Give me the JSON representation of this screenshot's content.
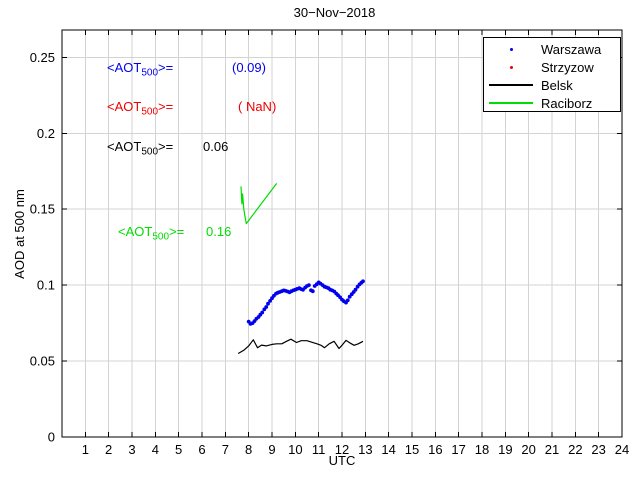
{
  "chart_data": {
    "type": "mixed",
    "title": "30−Nov−2018",
    "xlabel": "UTC",
    "ylabel": "AOD at 500 nm",
    "xlim": [
      0,
      24
    ],
    "ylim": [
      0,
      0.268
    ],
    "xticks": [
      1,
      2,
      3,
      4,
      5,
      6,
      7,
      8,
      9,
      10,
      11,
      12,
      13,
      14,
      15,
      16,
      17,
      18,
      19,
      20,
      21,
      22,
      23,
      24
    ],
    "yticks": [
      0,
      0.05,
      0.1,
      0.15,
      0.2,
      0.25
    ],
    "ytick_labels": [
      "0",
      "0.05",
      "0.1",
      "0.15",
      "0.2",
      "0.25"
    ],
    "grid": true,
    "grid_color": "#d3d3d3",
    "axis_color": "#000000",
    "legend_position": "top-right",
    "series": [
      {
        "name": "Warszawa",
        "type": "scatter",
        "color": "#0000ee",
        "mean_aot500": "(0.09)",
        "x": [
          8.0,
          8.08,
          8.17,
          8.25,
          8.33,
          8.42,
          8.5,
          8.58,
          8.67,
          8.75,
          8.83,
          8.92,
          9.0,
          9.08,
          9.17,
          9.25,
          9.33,
          9.42,
          9.5,
          9.58,
          9.67,
          9.75,
          9.83,
          9.92,
          10.0,
          10.08,
          10.17,
          10.25,
          10.33,
          10.42,
          10.5,
          10.58,
          10.67,
          10.75,
          10.83,
          10.92,
          11.0,
          11.08,
          11.17,
          11.25,
          11.33,
          11.42,
          11.5,
          11.58,
          11.67,
          11.75,
          11.83,
          11.92,
          12.0,
          12.08,
          12.17,
          12.25,
          12.33,
          12.42,
          12.5,
          12.58,
          12.67,
          12.75,
          12.83,
          12.9
        ],
        "y": [
          0.076,
          0.0745,
          0.075,
          0.0763,
          0.0778,
          0.079,
          0.0805,
          0.082,
          0.084,
          0.0856,
          0.0878,
          0.0896,
          0.0914,
          0.093,
          0.0944,
          0.095,
          0.0955,
          0.096,
          0.0965,
          0.0963,
          0.0958,
          0.0953,
          0.096,
          0.0966,
          0.097,
          0.0975,
          0.098,
          0.0974,
          0.0969,
          0.0984,
          0.0994,
          0.1,
          0.0966,
          0.096,
          0.0994,
          0.1006,
          0.1018,
          0.101,
          0.1,
          0.099,
          0.0985,
          0.098,
          0.097,
          0.0965,
          0.0958,
          0.0945,
          0.0934,
          0.092,
          0.0905,
          0.0894,
          0.0885,
          0.09,
          0.0924,
          0.094,
          0.0955,
          0.097,
          0.099,
          0.1005,
          0.1016,
          0.1025
        ]
      },
      {
        "name": "Strzyzow",
        "type": "scatter",
        "color": "#ee0000",
        "mean_aot500": "( NaN)",
        "x": [],
        "y": []
      },
      {
        "name": "Belsk",
        "type": "line",
        "color": "#000000",
        "mean_aot500": "0.06",
        "x": [
          7.55,
          7.8,
          8.0,
          8.2,
          8.38,
          8.55,
          8.75,
          9.0,
          9.2,
          9.42,
          9.62,
          9.81,
          10.05,
          10.25,
          10.5,
          10.7,
          10.93,
          11.1,
          11.25,
          11.45,
          11.66,
          11.87,
          12.0,
          12.17,
          12.33,
          12.52,
          12.7,
          12.9
        ],
        "y": [
          0.055,
          0.0572,
          0.06,
          0.064,
          0.0588,
          0.0605,
          0.06,
          0.061,
          0.0614,
          0.0614,
          0.063,
          0.0644,
          0.0622,
          0.0634,
          0.0634,
          0.0624,
          0.0614,
          0.0604,
          0.0588,
          0.0614,
          0.063,
          0.0583,
          0.0604,
          0.0636,
          0.062,
          0.0604,
          0.0614,
          0.063
        ]
      },
      {
        "name": "Raciborz",
        "type": "line",
        "color": "#00dd00",
        "mean_aot500": "0.16",
        "x": [
          7.67,
          7.71,
          7.74,
          7.79,
          7.84,
          7.9,
          9.2
        ],
        "y": [
          0.165,
          0.1535,
          0.16,
          0.15,
          0.1455,
          0.1405,
          0.167
        ]
      }
    ]
  },
  "annotations": [
    {
      "prefix": "<AOT",
      "sub": "500",
      "suffix": ">=",
      "value": "(0.09)",
      "color": "#0000ee"
    },
    {
      "prefix": "<AOT",
      "sub": "500",
      "suffix": ">=",
      "value": "( NaN)",
      "color": "#ee0000"
    },
    {
      "prefix": "<AOT",
      "sub": "500",
      "suffix": ">=",
      "value": "0.06",
      "color": "#000000"
    },
    {
      "prefix": "<AOT",
      "sub": "500",
      "suffix": ">=",
      "value": "0.16",
      "color": "#00dd00"
    }
  ]
}
